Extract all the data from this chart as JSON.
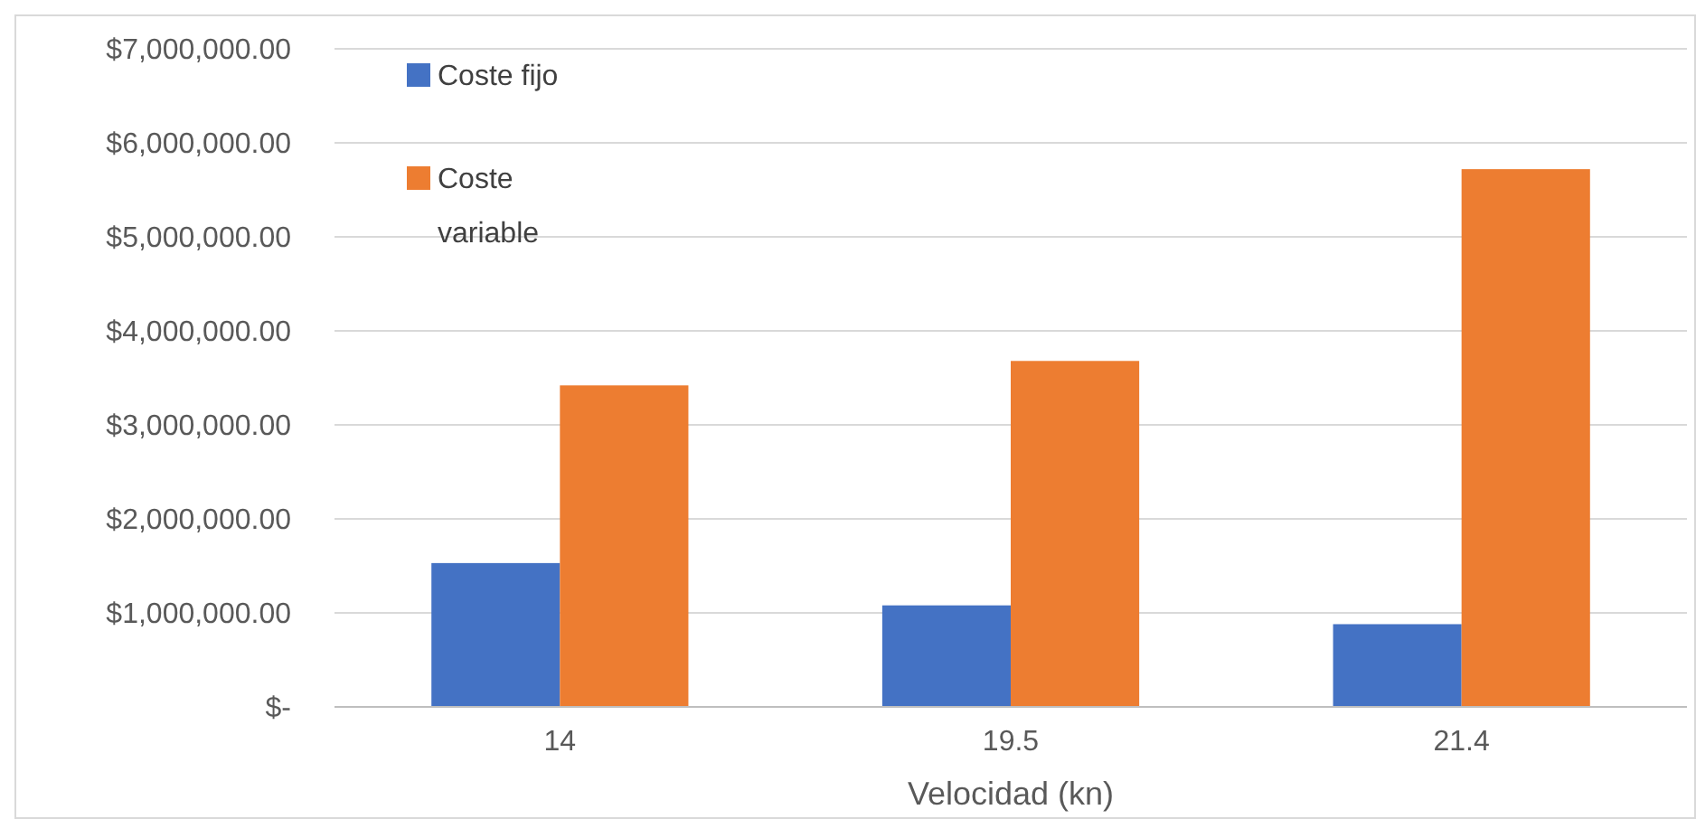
{
  "chart_data": {
    "type": "bar",
    "xlabel": "Velocidad (kn)",
    "categories": [
      "14",
      "19.5",
      "21.4"
    ],
    "series": [
      {
        "name": "Coste fijo",
        "color": "#4472c4",
        "values": [
          1530000,
          1080000,
          880000
        ]
      },
      {
        "name": "Coste variable",
        "color": "#ed7d31",
        "values": [
          3420000,
          3680000,
          5720000
        ]
      }
    ],
    "ylim": [
      0,
      7000000
    ],
    "yticks": [
      {
        "value": 0,
        "label": "$-"
      },
      {
        "value": 1000000,
        "label": "$1,000,000.00"
      },
      {
        "value": 2000000,
        "label": "$2,000,000.00"
      },
      {
        "value": 3000000,
        "label": "$3,000,000.00"
      },
      {
        "value": 4000000,
        "label": "$4,000,000.00"
      },
      {
        "value": 5000000,
        "label": "$5,000,000.00"
      },
      {
        "value": 6000000,
        "label": "$6,000,000.00"
      },
      {
        "value": 7000000,
        "label": "$7,000,000.00"
      }
    ],
    "grid": "y",
    "legend": "top left"
  }
}
